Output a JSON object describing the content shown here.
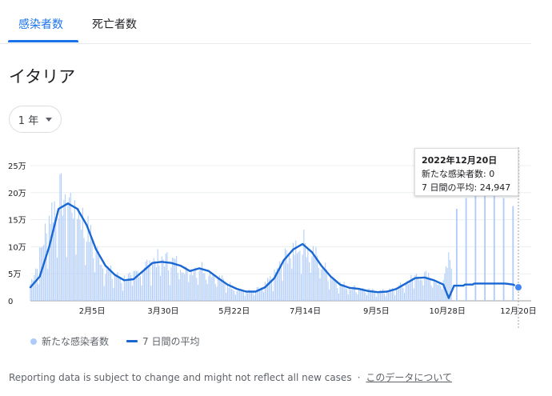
{
  "tabs": [
    {
      "label": "感染者数",
      "active": true
    },
    {
      "label": "死亡者数",
      "active": false
    }
  ],
  "region": "イタリア",
  "range_button": {
    "label": "1 年"
  },
  "tooltip": {
    "date": "2022年12月20日",
    "new_cases_line": "新たな感染者数: 0",
    "avg_line": "7 日間の平均: 24,947"
  },
  "legend": {
    "bars": "新たな感染者数",
    "line": "7 日間の平均"
  },
  "footer": {
    "note": "Reporting data is subject to change and might not reflect all new cases",
    "separator": "·",
    "link": "このデータについて"
  },
  "colors": {
    "accent": "#1a73e8",
    "bar": "#aecbfa",
    "line": "#1967d2",
    "dot": "#4285f4"
  },
  "chart_data": {
    "type": "bar",
    "title": "",
    "ylabel": "",
    "ylim": [
      0,
      250000
    ],
    "y_ticks": [
      {
        "value": 0,
        "label": "0"
      },
      {
        "value": 50000,
        "label": "5万"
      },
      {
        "value": 100000,
        "label": "10万"
      },
      {
        "value": 150000,
        "label": "15万"
      },
      {
        "value": 200000,
        "label": "20万"
      },
      {
        "value": 250000,
        "label": "25万"
      }
    ],
    "x_ticks": [
      {
        "date": "2022-02-05",
        "label": "2月5日"
      },
      {
        "date": "2022-03-30",
        "label": "3月30日"
      },
      {
        "date": "2022-05-22",
        "label": "5月22日"
      },
      {
        "date": "2022-07-14",
        "label": "7月14日"
      },
      {
        "date": "2022-09-05",
        "label": "9月5日"
      },
      {
        "date": "2022-10-28",
        "label": "10月28日"
      },
      {
        "date": "2022-12-20",
        "label": "12月20日"
      }
    ],
    "x_range": [
      "2021-12-21",
      "2022-12-20"
    ],
    "series": [
      {
        "name": "新たな感染者数",
        "type": "bar",
        "frequency": "daily",
        "note": "values listed weekly, daily bars vary around them; from 2022-11 reported weekly",
        "weekly_points": [
          [
            "2021-12-21",
            30000
          ],
          [
            "2021-12-28",
            80000
          ],
          [
            "2022-01-04",
            150000
          ],
          [
            "2022-01-11",
            185000
          ],
          [
            "2022-01-18",
            180000
          ],
          [
            "2022-01-25",
            165000
          ],
          [
            "2022-02-01",
            130000
          ],
          [
            "2022-02-08",
            90000
          ],
          [
            "2022-02-15",
            60000
          ],
          [
            "2022-02-22",
            45000
          ],
          [
            "2022-03-01",
            40000
          ],
          [
            "2022-03-08",
            45000
          ],
          [
            "2022-03-15",
            60000
          ],
          [
            "2022-03-22",
            72000
          ],
          [
            "2022-03-29",
            75000
          ],
          [
            "2022-04-05",
            70000
          ],
          [
            "2022-04-12",
            65000
          ],
          [
            "2022-04-19",
            55000
          ],
          [
            "2022-04-26",
            62000
          ],
          [
            "2022-05-03",
            55000
          ],
          [
            "2022-05-10",
            42000
          ],
          [
            "2022-05-17",
            30000
          ],
          [
            "2022-05-24",
            22000
          ],
          [
            "2022-05-31",
            16000
          ],
          [
            "2022-06-07",
            18000
          ],
          [
            "2022-06-14",
            28000
          ],
          [
            "2022-06-21",
            45000
          ],
          [
            "2022-06-28",
            75000
          ],
          [
            "2022-07-05",
            95000
          ],
          [
            "2022-07-12",
            105000
          ],
          [
            "2022-07-19",
            90000
          ],
          [
            "2022-07-26",
            65000
          ],
          [
            "2022-08-02",
            45000
          ],
          [
            "2022-08-09",
            30000
          ],
          [
            "2022-08-16",
            25000
          ],
          [
            "2022-08-23",
            22000
          ],
          [
            "2022-08-30",
            18000
          ],
          [
            "2022-09-06",
            17000
          ],
          [
            "2022-09-13",
            17000
          ],
          [
            "2022-09-20",
            22000
          ],
          [
            "2022-09-27",
            32000
          ],
          [
            "2022-10-04",
            45000
          ],
          [
            "2022-10-11",
            45000
          ],
          [
            "2022-10-18",
            38000
          ],
          [
            "2022-10-25",
            32000
          ],
          [
            "2022-11-04",
            170000
          ],
          [
            "2022-11-11",
            190000
          ],
          [
            "2022-11-18",
            200000
          ],
          [
            "2022-11-25",
            200000
          ],
          [
            "2022-12-02",
            200000
          ],
          [
            "2022-12-09",
            190000
          ],
          [
            "2022-12-16",
            175000
          ],
          [
            "2022-12-20",
            0
          ]
        ]
      },
      {
        "name": "7 日間の平均",
        "type": "line",
        "points": [
          [
            "2021-12-21",
            25000
          ],
          [
            "2021-12-28",
            45000
          ],
          [
            "2022-01-04",
            100000
          ],
          [
            "2022-01-11",
            170000
          ],
          [
            "2022-01-18",
            180000
          ],
          [
            "2022-01-25",
            170000
          ],
          [
            "2022-02-01",
            140000
          ],
          [
            "2022-02-08",
            95000
          ],
          [
            "2022-02-15",
            65000
          ],
          [
            "2022-02-22",
            48000
          ],
          [
            "2022-03-01",
            38000
          ],
          [
            "2022-03-08",
            40000
          ],
          [
            "2022-03-15",
            55000
          ],
          [
            "2022-03-22",
            70000
          ],
          [
            "2022-03-29",
            72000
          ],
          [
            "2022-04-05",
            70000
          ],
          [
            "2022-04-12",
            65000
          ],
          [
            "2022-04-19",
            55000
          ],
          [
            "2022-04-26",
            60000
          ],
          [
            "2022-05-03",
            55000
          ],
          [
            "2022-05-10",
            42000
          ],
          [
            "2022-05-17",
            30000
          ],
          [
            "2022-05-24",
            22000
          ],
          [
            "2022-05-31",
            17000
          ],
          [
            "2022-06-07",
            17000
          ],
          [
            "2022-06-14",
            25000
          ],
          [
            "2022-06-21",
            42000
          ],
          [
            "2022-06-28",
            75000
          ],
          [
            "2022-07-05",
            95000
          ],
          [
            "2022-07-12",
            105000
          ],
          [
            "2022-07-19",
            90000
          ],
          [
            "2022-07-26",
            65000
          ],
          [
            "2022-08-02",
            45000
          ],
          [
            "2022-08-09",
            30000
          ],
          [
            "2022-08-16",
            24000
          ],
          [
            "2022-08-23",
            22000
          ],
          [
            "2022-08-30",
            18000
          ],
          [
            "2022-09-06",
            16000
          ],
          [
            "2022-09-13",
            17000
          ],
          [
            "2022-09-20",
            22000
          ],
          [
            "2022-09-27",
            32000
          ],
          [
            "2022-10-04",
            42000
          ],
          [
            "2022-10-11",
            43000
          ],
          [
            "2022-10-18",
            38000
          ],
          [
            "2022-10-25",
            30000
          ],
          [
            "2022-10-29",
            5000
          ],
          [
            "2022-11-02",
            28000
          ],
          [
            "2022-11-09",
            28000
          ],
          [
            "2022-11-10",
            30000
          ],
          [
            "2022-11-16",
            30000
          ],
          [
            "2022-11-17",
            32000
          ],
          [
            "2022-12-10",
            32000
          ],
          [
            "2022-12-16",
            30000
          ],
          [
            "2022-12-20",
            24947
          ]
        ]
      }
    ],
    "highlight": {
      "date": "2022-12-20",
      "new_cases": 0,
      "avg": 24947
    },
    "grid": true,
    "legend_position": "bottom-left"
  }
}
